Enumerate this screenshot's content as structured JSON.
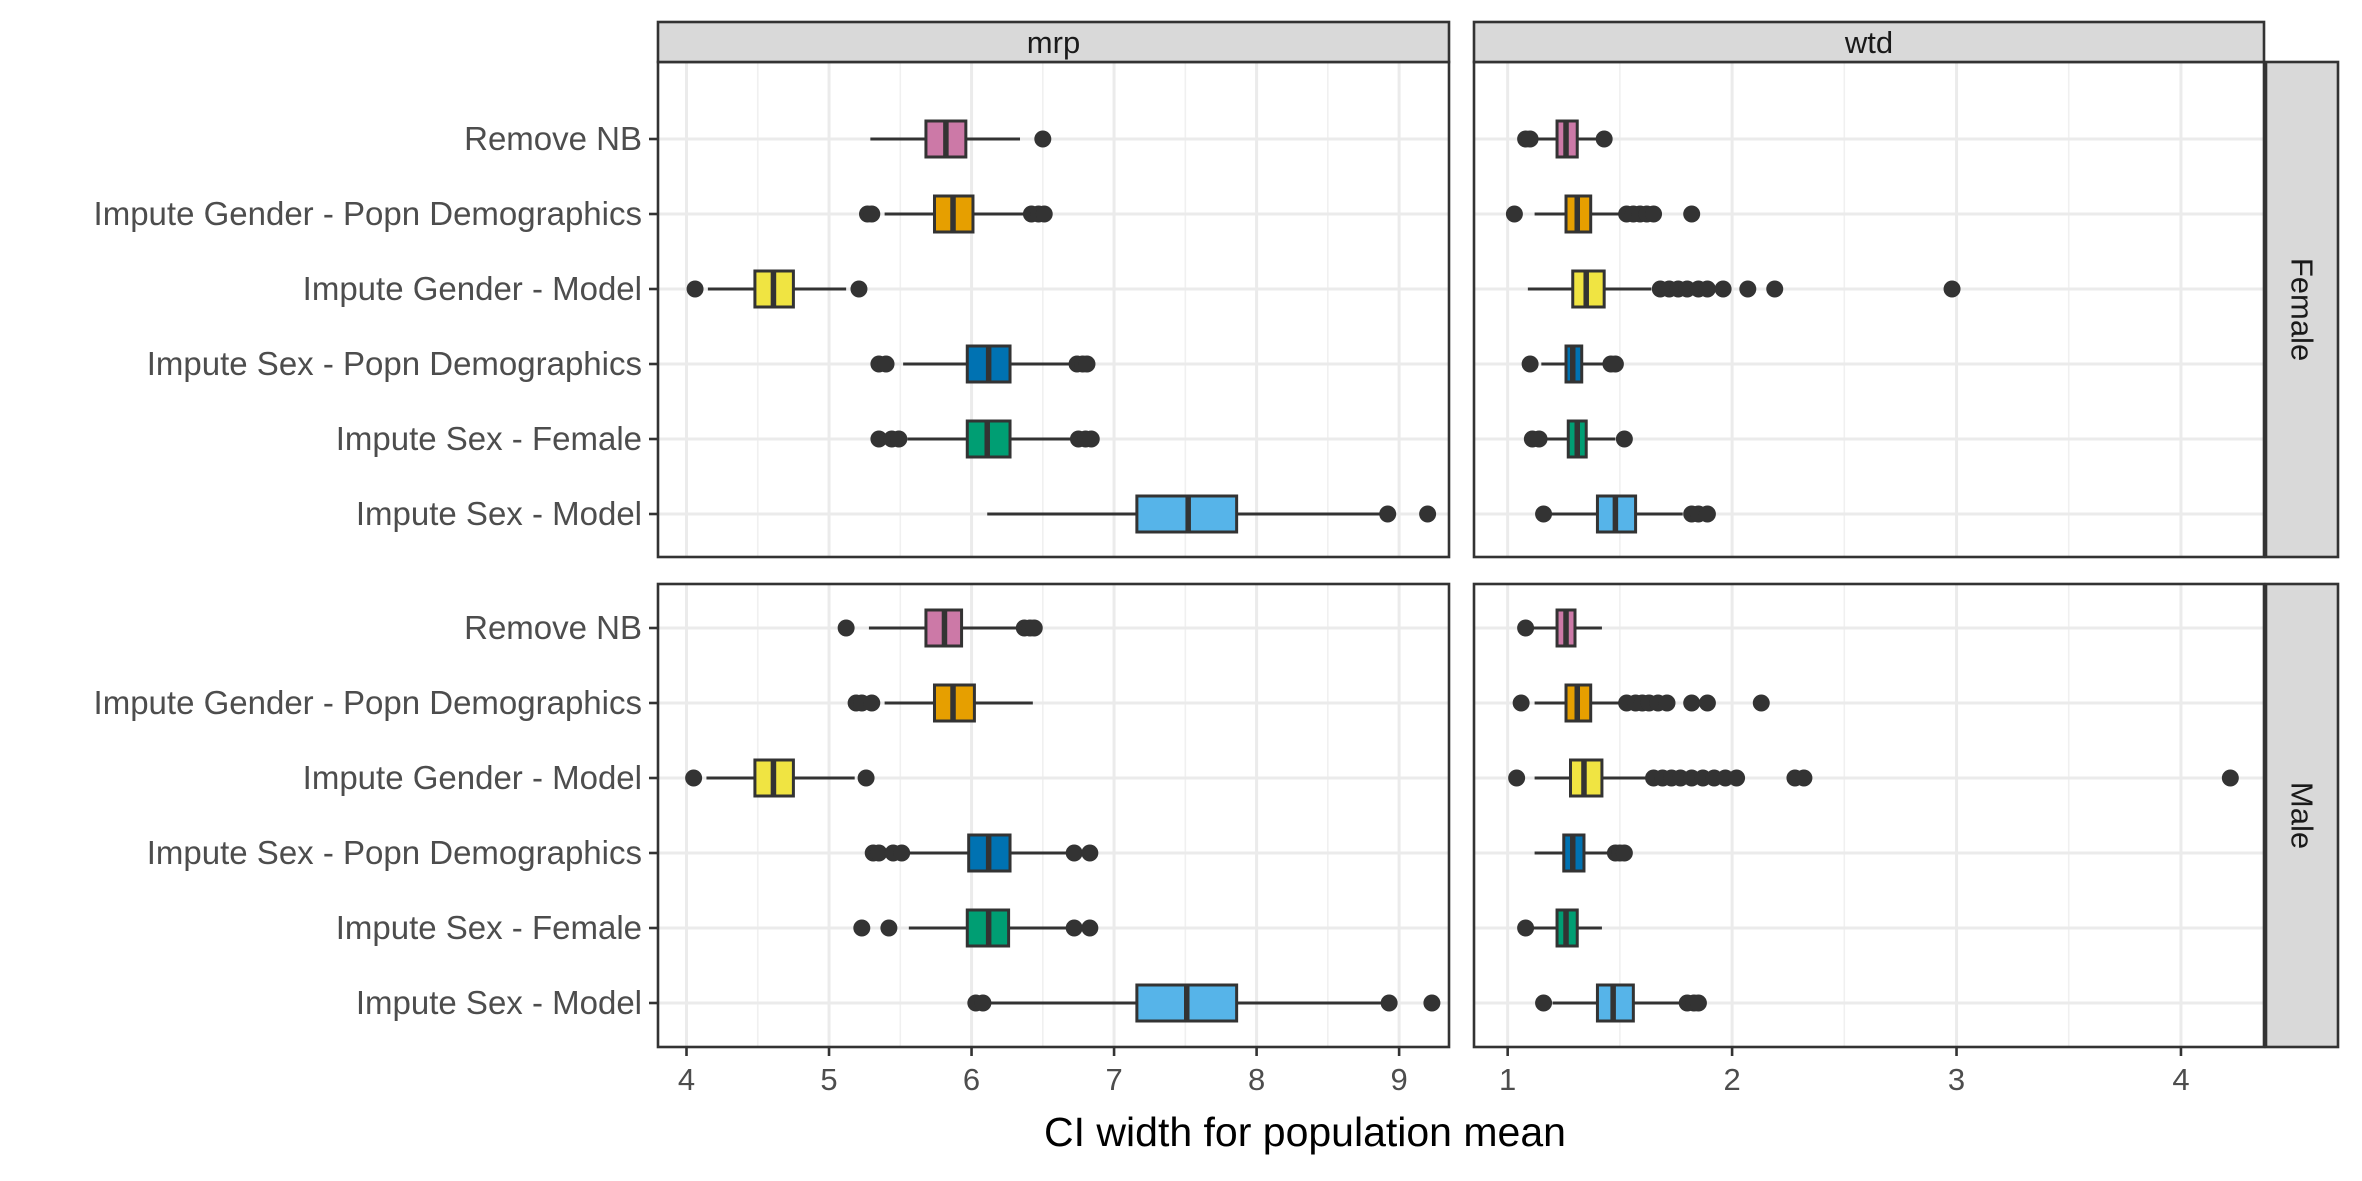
{
  "chart_data": {
    "type": "boxplot",
    "xlabel": "CI width for population mean",
    "ylabel": "",
    "columns": [
      {
        "name": "mrp",
        "xlim": [
          3.8,
          9.35
        ],
        "ticks": [
          4,
          5,
          6,
          7,
          8,
          9
        ]
      },
      {
        "name": "wtd",
        "xlim": [
          0.85,
          4.37
        ],
        "ticks": [
          1,
          2,
          3,
          4
        ]
      }
    ],
    "rows": [
      "Female",
      "Male"
    ],
    "categories": [
      "Remove NB",
      "Impute Gender - Popn Demographics",
      "Impute Gender - Model",
      "Impute Sex - Popn Demographics",
      "Impute Sex - Female",
      "Impute Sex - Model"
    ],
    "category_colors": [
      "#CC79A7",
      "#E69F00",
      "#F0E442",
      "#0072B2",
      "#009E73",
      "#56B4E9"
    ],
    "panels": [
      {
        "row": "Female",
        "column": "mrp",
        "boxes": [
          {
            "category": "Remove NB",
            "q1": 5.68,
            "median": 5.82,
            "q3": 5.96,
            "whisker_low": 5.29,
            "whisker_high": 6.34,
            "outliers": [
              6.5
            ]
          },
          {
            "category": "Impute Gender - Popn Demographics",
            "q1": 5.74,
            "median": 5.87,
            "q3": 6.01,
            "whisker_low": 5.39,
            "whisker_high": 6.38,
            "outliers": [
              5.27,
              5.3,
              6.42,
              6.47,
              6.51
            ]
          },
          {
            "category": "Impute Gender - Model",
            "q1": 4.48,
            "median": 4.61,
            "q3": 4.75,
            "whisker_low": 4.15,
            "whisker_high": 5.12,
            "outliers": [
              4.06,
              5.21
            ]
          },
          {
            "category": "Impute Sex - Popn Demographics",
            "q1": 5.97,
            "median": 6.12,
            "q3": 6.27,
            "whisker_low": 5.52,
            "whisker_high": 6.72,
            "outliers": [
              5.35,
              5.4,
              6.74,
              6.78,
              6.81
            ]
          },
          {
            "category": "Impute Sex - Female",
            "q1": 5.97,
            "median": 6.11,
            "q3": 6.27,
            "whisker_low": 5.55,
            "whisker_high": 6.71,
            "outliers": [
              5.35,
              5.44,
              5.49,
              6.75,
              6.8,
              6.84
            ]
          },
          {
            "category": "Impute Sex - Model",
            "q1": 7.16,
            "median": 7.52,
            "q3": 7.86,
            "whisker_low": 6.11,
            "whisker_high": 8.9,
            "outliers": [
              8.92,
              9.2
            ]
          }
        ]
      },
      {
        "row": "Female",
        "column": "wtd",
        "boxes": [
          {
            "category": "Remove NB",
            "q1": 1.22,
            "median": 1.26,
            "q3": 1.31,
            "whisker_low": 1.1,
            "whisker_high": 1.41,
            "outliers": [
              1.08,
              1.1,
              1.43
            ]
          },
          {
            "category": "Impute Gender - Popn Demographics",
            "q1": 1.26,
            "median": 1.31,
            "q3": 1.37,
            "whisker_low": 1.12,
            "whisker_high": 1.5,
            "outliers": [
              1.03,
              1.53,
              1.56,
              1.59,
              1.62,
              1.65,
              1.82
            ]
          },
          {
            "category": "Impute Gender - Model",
            "q1": 1.29,
            "median": 1.35,
            "q3": 1.43,
            "whisker_low": 1.09,
            "whisker_high": 1.64,
            "outliers": [
              1.68,
              1.72,
              1.76,
              1.8,
              1.85,
              1.89,
              1.96,
              2.07,
              2.19,
              2.98
            ]
          },
          {
            "category": "Impute Sex - Popn Demographics",
            "q1": 1.26,
            "median": 1.29,
            "q3": 1.33,
            "whisker_low": 1.15,
            "whisker_high": 1.45,
            "outliers": [
              1.1,
              1.46,
              1.48
            ]
          },
          {
            "category": "Impute Sex - Female",
            "q1": 1.27,
            "median": 1.31,
            "q3": 1.35,
            "whisker_low": 1.16,
            "whisker_high": 1.48,
            "outliers": [
              1.11,
              1.14,
              1.52
            ]
          },
          {
            "category": "Impute Sex - Model",
            "q1": 1.4,
            "median": 1.48,
            "q3": 1.57,
            "whisker_low": 1.19,
            "whisker_high": 1.78,
            "outliers": [
              1.16,
              1.82,
              1.85,
              1.89
            ]
          }
        ]
      },
      {
        "row": "Male",
        "column": "mrp",
        "boxes": [
          {
            "category": "Remove NB",
            "q1": 5.68,
            "median": 5.81,
            "q3": 5.93,
            "whisker_low": 5.28,
            "whisker_high": 6.33,
            "outliers": [
              5.12,
              6.37,
              6.41,
              6.44
            ]
          },
          {
            "category": "Impute Gender - Popn Demographics",
            "q1": 5.74,
            "median": 5.87,
            "q3": 6.02,
            "whisker_low": 5.39,
            "whisker_high": 6.43,
            "outliers": [
              5.19,
              5.23,
              5.3
            ]
          },
          {
            "category": "Impute Gender - Model",
            "q1": 4.48,
            "median": 4.61,
            "q3": 4.75,
            "whisker_low": 4.14,
            "whisker_high": 5.18,
            "outliers": [
              4.05,
              5.26
            ]
          },
          {
            "category": "Impute Sex - Popn Demographics",
            "q1": 5.98,
            "median": 6.12,
            "q3": 6.27,
            "whisker_low": 5.55,
            "whisker_high": 6.68,
            "outliers": [
              5.31,
              5.35,
              5.45,
              5.51,
              6.72,
              6.83
            ]
          },
          {
            "category": "Impute Sex - Female",
            "q1": 5.97,
            "median": 6.12,
            "q3": 6.26,
            "whisker_low": 5.56,
            "whisker_high": 6.67,
            "outliers": [
              5.23,
              5.42,
              6.72,
              6.83
            ]
          },
          {
            "category": "Impute Sex - Model",
            "q1": 7.16,
            "median": 7.51,
            "q3": 7.86,
            "whisker_low": 6.12,
            "whisker_high": 8.91,
            "outliers": [
              6.03,
              6.08,
              8.93,
              9.23
            ]
          }
        ]
      },
      {
        "row": "Male",
        "column": "wtd",
        "boxes": [
          {
            "category": "Remove NB",
            "q1": 1.22,
            "median": 1.26,
            "q3": 1.3,
            "whisker_low": 1.1,
            "whisker_high": 1.42,
            "outliers": [
              1.08
            ]
          },
          {
            "category": "Impute Gender - Popn Demographics",
            "q1": 1.26,
            "median": 1.31,
            "q3": 1.37,
            "whisker_low": 1.12,
            "whisker_high": 1.5,
            "outliers": [
              1.06,
              1.53,
              1.57,
              1.6,
              1.63,
              1.67,
              1.71,
              1.82,
              1.89,
              2.13
            ]
          },
          {
            "category": "Impute Gender - Model",
            "q1": 1.28,
            "median": 1.34,
            "q3": 1.42,
            "whisker_low": 1.12,
            "whisker_high": 1.62,
            "outliers": [
              1.04,
              1.65,
              1.69,
              1.73,
              1.77,
              1.82,
              1.87,
              1.92,
              1.97,
              2.02,
              2.28,
              2.32,
              4.22
            ]
          },
          {
            "category": "Impute Sex - Popn Demographics",
            "q1": 1.25,
            "median": 1.29,
            "q3": 1.34,
            "whisker_low": 1.12,
            "whisker_high": 1.46,
            "outliers": [
              1.48,
              1.5,
              1.52
            ]
          },
          {
            "category": "Impute Sex - Female",
            "q1": 1.22,
            "median": 1.26,
            "q3": 1.31,
            "whisker_low": 1.11,
            "whisker_high": 1.42,
            "outliers": [
              1.08
            ]
          },
          {
            "category": "Impute Sex - Model",
            "q1": 1.4,
            "median": 1.47,
            "q3": 1.56,
            "whisker_low": 1.2,
            "whisker_high": 1.77,
            "outliers": [
              1.16,
              1.8,
              1.83,
              1.85
            ]
          }
        ]
      }
    ],
    "grid": true,
    "legend": "none"
  }
}
